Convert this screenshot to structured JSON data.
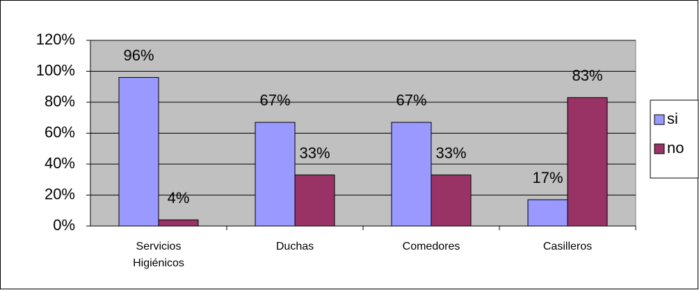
{
  "chart_data": {
    "type": "bar",
    "categories": [
      "Servicios Higiénicos",
      "Duchas",
      "Comedores",
      "Casilleros"
    ],
    "series": [
      {
        "name": "si",
        "color": "#9999ff",
        "values": [
          96,
          67,
          67,
          17
        ],
        "value_labels": [
          "96%",
          "67%",
          "67%",
          "17%"
        ]
      },
      {
        "name": "no",
        "color": "#993366",
        "values": [
          4,
          33,
          33,
          83
        ],
        "value_labels": [
          "4%",
          "33%",
          "33%",
          "83%"
        ]
      }
    ],
    "ylim": [
      0,
      120
    ],
    "yticks": [
      {
        "value": 0,
        "label": "0%"
      },
      {
        "value": 20,
        "label": "20%"
      },
      {
        "value": 40,
        "label": "40%"
      },
      {
        "value": 60,
        "label": "60%"
      },
      {
        "value": 80,
        "label": "80%"
      },
      {
        "value": 100,
        "label": "100%"
      },
      {
        "value": 120,
        "label": "120%"
      }
    ],
    "grid": true,
    "legend": "right",
    "plot_background": "#c0c0c0"
  }
}
